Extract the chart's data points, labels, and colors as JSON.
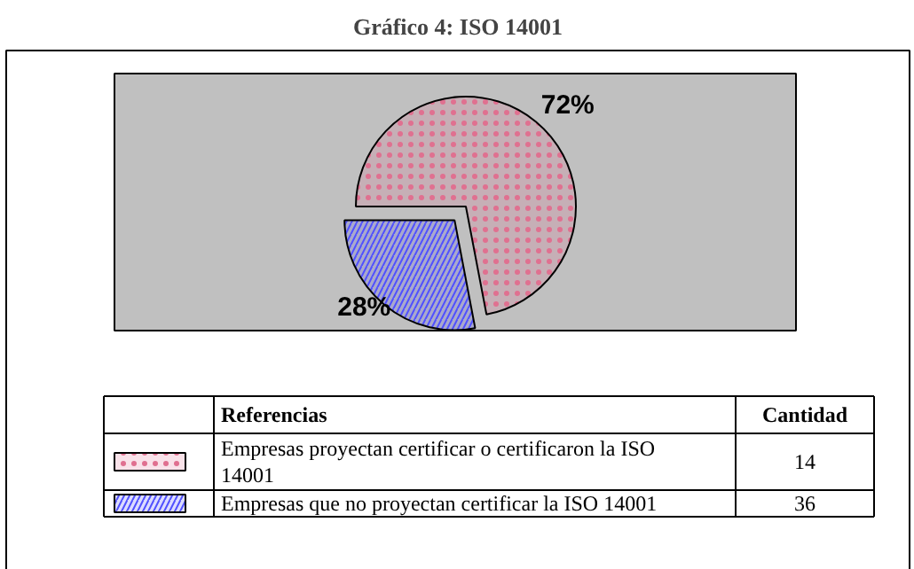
{
  "chart_data": {
    "type": "pie",
    "title": "Gráfico 4: ISO 14001",
    "categories": [
      "Empresas proyectan certificar o certificaron  la ISO 14001",
      "Empresas que no proyectan certificar la ISO 14001"
    ],
    "values": [
      72,
      28
    ],
    "value_labels": [
      "72%",
      "28%"
    ],
    "colors": [
      "#e07090",
      "#5050ff"
    ],
    "legend": "bottom",
    "legend_title": "Referencias",
    "annotations": [
      "Cantidad",
      "14",
      "36"
    ]
  }
}
